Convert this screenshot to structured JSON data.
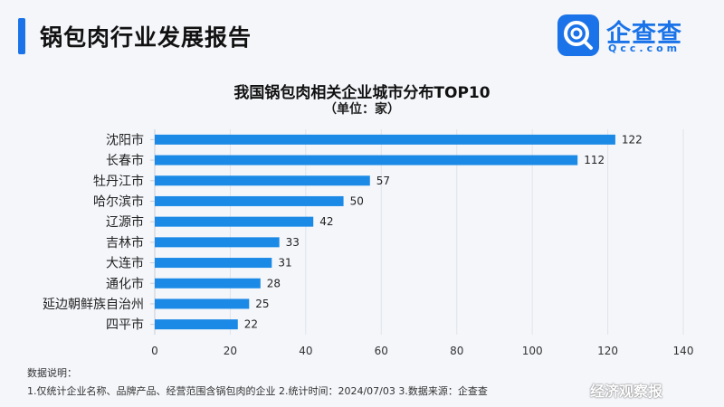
{
  "header": {
    "title": "锅包肉行业发展报告"
  },
  "brand": {
    "name": "企查查",
    "domain": "Qcc.com",
    "accent": "#1a73e8"
  },
  "chart_data": {
    "type": "bar",
    "orientation": "horizontal",
    "title": "我国锅包肉相关企业城市分布TOP10",
    "subtitle": "（单位：家）",
    "categories": [
      "沈阳市",
      "长春市",
      "牡丹江市",
      "哈尔滨市",
      "辽源市",
      "吉林市",
      "大连市",
      "通化市",
      "延边朝鲜族自治州",
      "四平市"
    ],
    "values": [
      122,
      112,
      57,
      50,
      42,
      33,
      31,
      28,
      25,
      22
    ],
    "xlim": [
      0,
      140
    ],
    "xticks": [
      0,
      20,
      40,
      60,
      80,
      100,
      120,
      140
    ],
    "grid": true,
    "bar_color": "#1a8ae6"
  },
  "notes": {
    "title": "数据说明：",
    "body": "1.仅统计企业名称、品牌产品、经营范围含锅包肉的企业  2.统计时间：2024/07/03   3.数据来源：企查查"
  },
  "watermark": "经济观察报"
}
